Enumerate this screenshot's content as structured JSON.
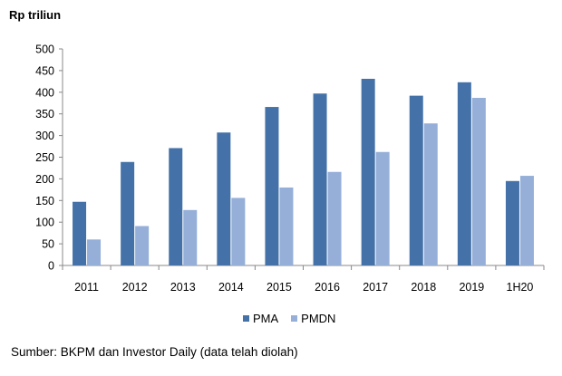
{
  "chart_data": {
    "type": "bar",
    "ylabel": "Rp triliun",
    "categories": [
      "2011",
      "2012",
      "2013",
      "2014",
      "2015",
      "2016",
      "2017",
      "2018",
      "2019",
      "1H20"
    ],
    "series": [
      {
        "name": "PMA",
        "color": "#4472a8",
        "values": [
          147,
          239,
          271,
          307,
          366,
          397,
          431,
          392,
          423,
          195
        ]
      },
      {
        "name": "PMDN",
        "color": "#95afd8",
        "values": [
          60,
          91,
          128,
          156,
          180,
          216,
          262,
          328,
          387,
          207
        ]
      }
    ],
    "ylim": [
      0,
      500
    ],
    "yticks": [
      0,
      50,
      100,
      150,
      200,
      250,
      300,
      350,
      400,
      450,
      500
    ],
    "grid": false,
    "legend_position": "bottom"
  },
  "source_text": "Sumber: BKPM dan Investor  Daily (data telah diolah)"
}
